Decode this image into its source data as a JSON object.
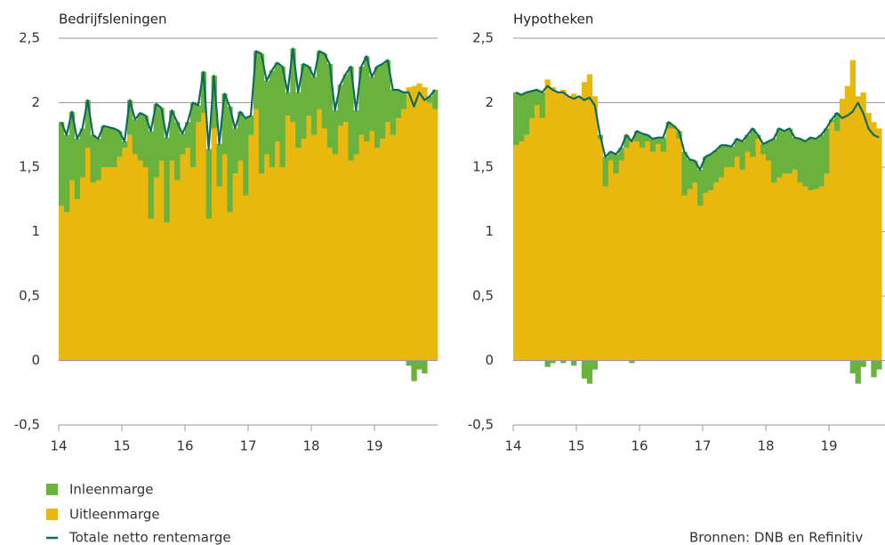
{
  "chart_data": [
    {
      "type": "bar",
      "stacked": true,
      "title": "Bedrijfsleningen",
      "xlim": [
        2014,
        2020
      ],
      "xticks": [
        {
          "value": 2014,
          "label": "14"
        },
        {
          "value": 2015,
          "label": "15"
        },
        {
          "value": 2016,
          "label": "16"
        },
        {
          "value": 2017,
          "label": "17"
        },
        {
          "value": 2018,
          "label": "18"
        },
        {
          "value": 2019,
          "label": "19"
        }
      ],
      "ylim": [
        -0.5,
        2.5
      ],
      "yticks": [
        {
          "value": 2.5,
          "label": "2,5"
        },
        2,
        {
          "value": 1.5,
          "label": "1,5"
        },
        1,
        {
          "value": 0.5,
          "label": "0,5"
        },
        0,
        {
          "value": -0.5,
          "label": "-0,5"
        }
      ],
      "series": [
        {
          "name": "Uitleenmarge",
          "color": "#e8b80f",
          "type": "bar",
          "values": [
            1.2,
            1.15,
            1.4,
            1.25,
            1.42,
            1.65,
            1.38,
            1.4,
            1.5,
            1.5,
            1.5,
            1.58,
            1.65,
            1.75,
            1.6,
            1.55,
            1.5,
            1.1,
            1.42,
            1.55,
            1.07,
            1.55,
            1.4,
            1.6,
            1.65,
            1.5,
            1.85,
            1.92,
            1.1,
            1.8,
            1.35,
            1.6,
            1.15,
            1.45,
            1.55,
            1.28,
            1.75,
            1.95,
            1.45,
            1.6,
            1.5,
            1.7,
            1.5,
            1.9,
            1.85,
            1.65,
            1.72,
            1.9,
            1.75,
            1.95,
            1.8,
            1.65,
            1.6,
            1.82,
            1.85,
            1.55,
            1.6,
            1.75,
            1.7,
            1.78,
            1.65,
            1.72,
            1.85,
            1.75,
            1.88,
            1.95,
            2.12,
            2.13,
            2.15,
            2.12,
            2.0,
            1.95
          ]
        },
        {
          "name": "Inleenmarge",
          "color": "#6ab23e",
          "type": "bar",
          "values": [
            0.65,
            0.6,
            0.53,
            0.47,
            0.38,
            0.37,
            0.37,
            0.32,
            0.32,
            0.31,
            0.3,
            0.2,
            0.05,
            0.27,
            0.27,
            0.37,
            0.4,
            0.68,
            0.57,
            0.41,
            0.66,
            0.39,
            0.45,
            0.16,
            0.2,
            0.5,
            0.13,
            0.32,
            0.54,
            0.41,
            0.33,
            0.47,
            0.82,
            0.35,
            0.38,
            0.6,
            0.15,
            0.45,
            0.93,
            0.57,
            0.75,
            0.61,
            0.78,
            0.18,
            0.57,
            0.43,
            0.58,
            0.38,
            0.45,
            0.45,
            0.58,
            0.65,
            0.34,
            0.32,
            0.37,
            0.73,
            0.34,
            0.53,
            0.66,
            0.42,
            0.63,
            0.58,
            0.48,
            0.35,
            0.22,
            0.13,
            -0.04,
            -0.16,
            -0.07,
            -0.1,
            0.05,
            0.15
          ]
        },
        {
          "name": "Totale netto rentemarge",
          "color": "#0e6b5c",
          "type": "line",
          "values": [
            1.85,
            1.75,
            1.93,
            1.72,
            1.8,
            2.02,
            1.75,
            1.72,
            1.82,
            1.81,
            1.8,
            1.78,
            1.7,
            2.02,
            1.87,
            1.92,
            1.9,
            1.78,
            1.99,
            1.96,
            1.73,
            1.94,
            1.85,
            1.76,
            1.85,
            2.0,
            1.98,
            2.24,
            1.64,
            2.21,
            1.68,
            2.07,
            1.97,
            1.8,
            1.93,
            1.88,
            1.9,
            2.4,
            2.38,
            2.17,
            2.25,
            2.31,
            2.28,
            2.08,
            2.42,
            2.08,
            2.3,
            2.28,
            2.2,
            2.4,
            2.38,
            2.3,
            1.94,
            2.14,
            2.22,
            2.28,
            1.94,
            2.28,
            2.36,
            2.2,
            2.28,
            2.3,
            2.33,
            2.1,
            2.1,
            2.08,
            2.08,
            1.97,
            2.08,
            2.02,
            2.05,
            2.1
          ]
        }
      ]
    },
    {
      "type": "bar",
      "stacked": true,
      "title": "Hypotheken",
      "xlim": [
        2014,
        2020
      ],
      "xticks": [
        {
          "value": 2014,
          "label": "14"
        },
        {
          "value": 2015,
          "label": "15"
        },
        {
          "value": 2016,
          "label": "16"
        },
        {
          "value": 2017,
          "label": "17"
        },
        {
          "value": 2018,
          "label": "18"
        },
        {
          "value": 2019,
          "label": "19"
        }
      ],
      "ylim": [
        -0.5,
        2.5
      ],
      "yticks": [
        {
          "value": 2.5,
          "label": "2,5"
        },
        2,
        {
          "value": 1.5,
          "label": "1,5"
        },
        1,
        {
          "value": 0.5,
          "label": "0,5"
        },
        0,
        {
          "value": -0.5,
          "label": "-0,5"
        }
      ],
      "series": [
        {
          "name": "Uitleenmarge",
          "color": "#e8b80f",
          "type": "bar",
          "values": [
            1.67,
            1.7,
            1.75,
            1.88,
            1.98,
            1.88,
            2.18,
            2.12,
            2.08,
            2.1,
            2.05,
            2.07,
            2.05,
            2.16,
            2.22,
            2.05,
            1.72,
            1.35,
            1.55,
            1.45,
            1.55,
            1.65,
            1.72,
            1.7,
            1.65,
            1.7,
            1.62,
            1.68,
            1.62,
            1.8,
            1.8,
            1.72,
            1.28,
            1.33,
            1.38,
            1.2,
            1.3,
            1.32,
            1.38,
            1.42,
            1.5,
            1.5,
            1.58,
            1.48,
            1.62,
            1.58,
            1.72,
            1.6,
            1.55,
            1.38,
            1.42,
            1.45,
            1.45,
            1.48,
            1.38,
            1.35,
            1.32,
            1.33,
            1.35,
            1.45,
            1.85,
            1.78,
            2.03,
            2.13,
            2.33,
            2.05,
            2.08,
            1.92,
            1.85,
            1.8
          ]
        },
        {
          "name": "Inleenmarge",
          "color": "#6ab23e",
          "type": "bar",
          "values": [
            0.41,
            0.36,
            0.33,
            0.21,
            0.12,
            0.2,
            -0.05,
            -0.02,
            0,
            -0.02,
            0,
            -0.04,
            0,
            -0.14,
            -0.18,
            -0.07,
            0.03,
            0.23,
            0.07,
            0.15,
            0.1,
            0.1,
            -0.02,
            0.08,
            0.11,
            0.05,
            0.1,
            0.05,
            0.11,
            0.05,
            0.02,
            0.06,
            0.34,
            0.23,
            0.17,
            0.28,
            0.28,
            0.28,
            0.25,
            0.25,
            0.17,
            0.16,
            0.14,
            0.22,
            0.13,
            0.22,
            0.03,
            0.08,
            0.15,
            0.34,
            0.38,
            0.33,
            0.35,
            0.25,
            0.34,
            0.35,
            0.41,
            0.39,
            0.4,
            0.35,
            0.02,
            0.14,
            0,
            0,
            -0.1,
            -0.18,
            -0.05,
            0,
            -0.13,
            -0.07
          ]
        },
        {
          "name": "Totale netto rentemarge",
          "color": "#0e6b5c",
          "type": "line",
          "values": [
            2.08,
            2.06,
            2.08,
            2.09,
            2.1,
            2.08,
            2.13,
            2.1,
            2.08,
            2.08,
            2.05,
            2.03,
            2.05,
            2.02,
            2.04,
            1.98,
            1.75,
            1.58,
            1.62,
            1.6,
            1.65,
            1.75,
            1.7,
            1.78,
            1.76,
            1.75,
            1.72,
            1.73,
            1.73,
            1.85,
            1.82,
            1.78,
            1.62,
            1.56,
            1.55,
            1.48,
            1.58,
            1.6,
            1.63,
            1.67,
            1.67,
            1.66,
            1.72,
            1.7,
            1.75,
            1.8,
            1.75,
            1.68,
            1.7,
            1.72,
            1.8,
            1.78,
            1.8,
            1.73,
            1.72,
            1.7,
            1.73,
            1.72,
            1.75,
            1.8,
            1.87,
            1.92,
            1.88,
            1.9,
            1.93,
            2.0,
            1.92,
            1.8,
            1.75,
            1.73
          ]
        }
      ]
    }
  ],
  "source": "Bronnen: DNB en Refinitiv"
}
